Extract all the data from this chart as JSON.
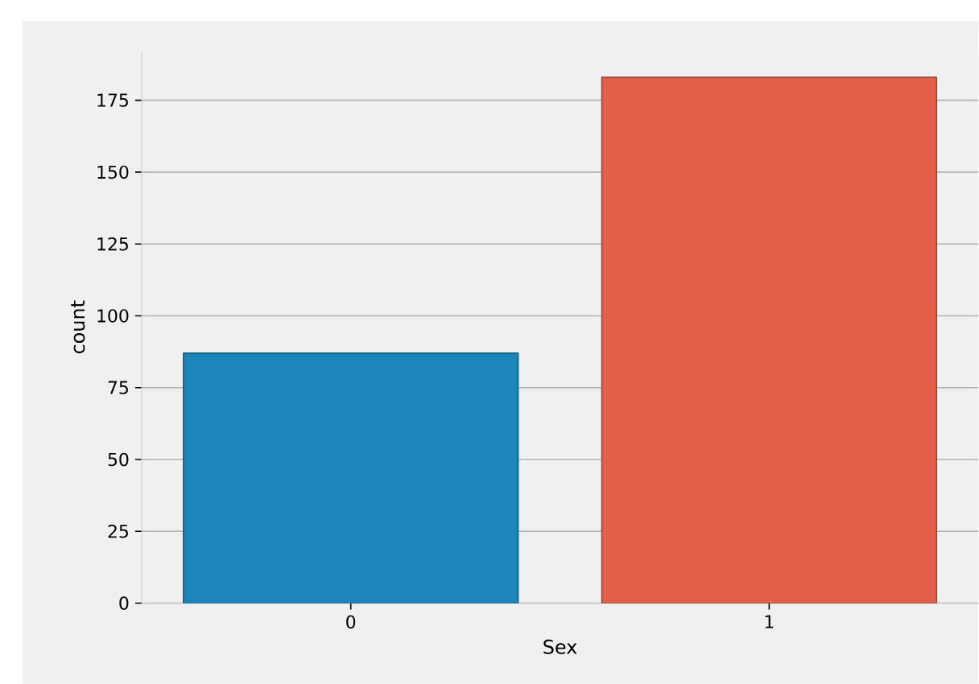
{
  "chart_data": {
    "type": "bar",
    "xlabel": "Sex",
    "ylabel": "count",
    "categories": [
      "0",
      "1"
    ],
    "values": [
      87,
      183
    ],
    "colors": [
      "#1c86bb",
      "#e35f4a"
    ],
    "ylim": [
      0,
      192
    ],
    "yticks": [
      0,
      25,
      50,
      75,
      100,
      125,
      150,
      175
    ],
    "grid": "y"
  }
}
